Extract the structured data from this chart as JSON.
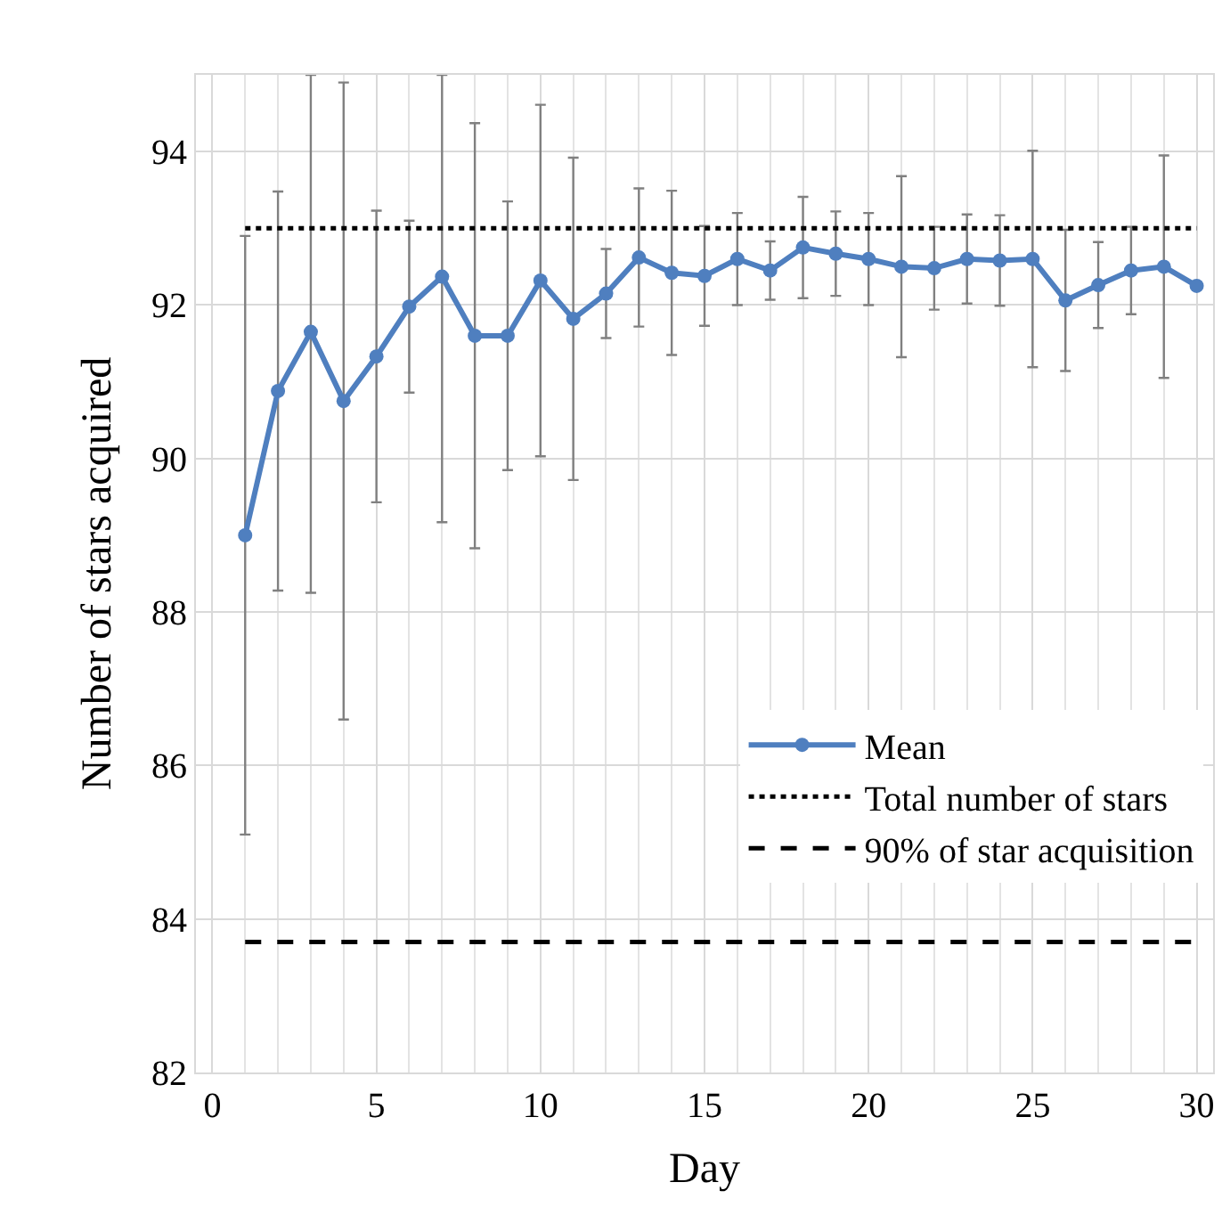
{
  "chart_data": {
    "type": "line",
    "xlabel": "Day",
    "ylabel": "Number of stars acquired",
    "x": [
      1,
      2,
      3,
      4,
      5,
      6,
      7,
      8,
      9,
      10,
      11,
      12,
      13,
      14,
      15,
      16,
      17,
      18,
      19,
      20,
      21,
      22,
      23,
      24,
      25,
      26,
      27,
      28,
      29,
      30
    ],
    "series": [
      {
        "name": "Mean",
        "color": "#4f7fbf",
        "values": [
          89.0,
          90.88,
          91.65,
          90.75,
          91.33,
          91.98,
          92.37,
          91.6,
          91.6,
          92.32,
          91.82,
          92.15,
          92.62,
          92.42,
          92.38,
          92.6,
          92.45,
          92.75,
          92.67,
          92.6,
          92.5,
          92.48,
          92.6,
          92.58,
          92.6,
          92.06,
          92.26,
          92.45,
          92.5,
          92.25
        ],
        "errors": [
          3.9,
          2.6,
          [
            88.25,
            95.0
          ],
          4.15,
          1.9,
          1.12,
          [
            89.17,
            95.0
          ],
          2.77,
          1.75,
          2.29,
          2.1,
          0.58,
          0.9,
          1.07,
          0.65,
          0.6,
          0.38,
          0.66,
          0.55,
          0.6,
          1.18,
          0.54,
          0.58,
          0.59,
          1.41,
          0.92,
          0.56,
          0.57,
          1.45,
          null
        ]
      }
    ],
    "ref_lines": [
      {
        "axis": "y",
        "value": 93,
        "label": "Total number of stars",
        "color": "#000000",
        "line_style": "dotted"
      },
      {
        "axis": "y",
        "value": 83.7,
        "label": "90% of star acquisition",
        "color": "#000000",
        "line_style": "dashed"
      }
    ],
    "xlim": [
      -0.5,
      30.5
    ],
    "xticks": [
      0,
      5,
      10,
      15,
      20,
      25,
      30
    ],
    "ylim": [
      82,
      95
    ],
    "yticks": [
      82,
      84,
      86,
      88,
      90,
      92,
      94
    ],
    "grid": true,
    "legend": "bottom right",
    "marker": "circle",
    "line_style": "solid"
  }
}
